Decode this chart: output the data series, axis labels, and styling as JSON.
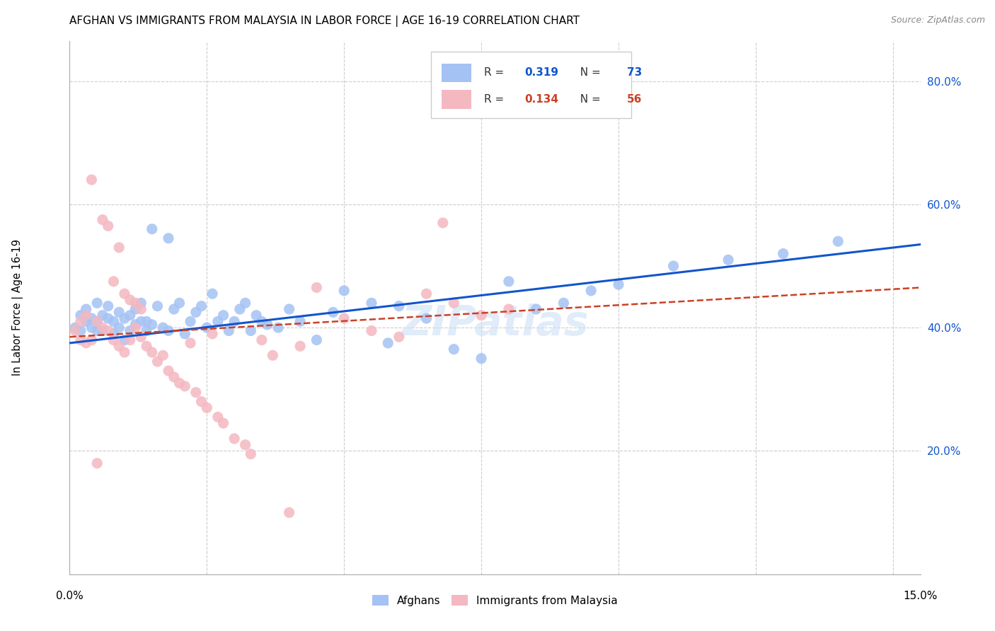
{
  "title": "AFGHAN VS IMMIGRANTS FROM MALAYSIA IN LABOR FORCE | AGE 16-19 CORRELATION CHART",
  "source": "Source: ZipAtlas.com",
  "ylabel": "In Labor Force | Age 16-19",
  "xlim": [
    0.0,
    0.155
  ],
  "ylim": [
    0.0,
    0.865
  ],
  "blue_color": "#a4c2f4",
  "pink_color": "#f4b8c1",
  "blue_line_color": "#1155cc",
  "pink_line_color": "#cc4125",
  "legend_blue_R": "0.319",
  "legend_blue_N": "73",
  "legend_pink_R": "0.134",
  "legend_pink_N": "56",
  "watermark": "ZIPatlas",
  "blue_scatter_x": [
    0.001,
    0.002,
    0.002,
    0.003,
    0.003,
    0.004,
    0.004,
    0.005,
    0.005,
    0.005,
    0.006,
    0.006,
    0.007,
    0.007,
    0.008,
    0.008,
    0.009,
    0.009,
    0.01,
    0.01,
    0.011,
    0.011,
    0.012,
    0.012,
    0.013,
    0.013,
    0.014,
    0.014,
    0.015,
    0.015,
    0.016,
    0.017,
    0.018,
    0.018,
    0.019,
    0.02,
    0.021,
    0.022,
    0.023,
    0.024,
    0.025,
    0.026,
    0.027,
    0.028,
    0.029,
    0.03,
    0.031,
    0.032,
    0.033,
    0.034,
    0.035,
    0.036,
    0.038,
    0.04,
    0.042,
    0.045,
    0.048,
    0.05,
    0.055,
    0.058,
    0.06,
    0.065,
    0.07,
    0.075,
    0.08,
    0.085,
    0.09,
    0.095,
    0.1,
    0.11,
    0.12,
    0.13,
    0.14
  ],
  "blue_scatter_y": [
    0.4,
    0.395,
    0.42,
    0.41,
    0.43,
    0.4,
    0.415,
    0.395,
    0.41,
    0.44,
    0.395,
    0.42,
    0.415,
    0.435,
    0.39,
    0.41,
    0.4,
    0.425,
    0.38,
    0.415,
    0.395,
    0.42,
    0.405,
    0.43,
    0.41,
    0.44,
    0.395,
    0.41,
    0.405,
    0.56,
    0.435,
    0.4,
    0.395,
    0.545,
    0.43,
    0.44,
    0.39,
    0.41,
    0.425,
    0.435,
    0.4,
    0.455,
    0.41,
    0.42,
    0.395,
    0.41,
    0.43,
    0.44,
    0.395,
    0.42,
    0.41,
    0.405,
    0.4,
    0.43,
    0.41,
    0.38,
    0.425,
    0.46,
    0.44,
    0.375,
    0.435,
    0.415,
    0.365,
    0.35,
    0.475,
    0.43,
    0.44,
    0.46,
    0.47,
    0.5,
    0.51,
    0.52,
    0.54
  ],
  "pink_scatter_x": [
    0.001,
    0.002,
    0.002,
    0.003,
    0.003,
    0.004,
    0.004,
    0.005,
    0.005,
    0.006,
    0.006,
    0.007,
    0.007,
    0.008,
    0.008,
    0.009,
    0.009,
    0.01,
    0.01,
    0.011,
    0.011,
    0.012,
    0.012,
    0.013,
    0.013,
    0.014,
    0.015,
    0.016,
    0.017,
    0.018,
    0.019,
    0.02,
    0.021,
    0.022,
    0.023,
    0.024,
    0.025,
    0.026,
    0.027,
    0.028,
    0.03,
    0.032,
    0.033,
    0.035,
    0.037,
    0.04,
    0.042,
    0.045,
    0.05,
    0.055,
    0.06,
    0.065,
    0.068,
    0.07,
    0.075,
    0.08
  ],
  "pink_scatter_y": [
    0.395,
    0.38,
    0.41,
    0.42,
    0.375,
    0.38,
    0.64,
    0.41,
    0.18,
    0.4,
    0.575,
    0.395,
    0.565,
    0.38,
    0.475,
    0.37,
    0.53,
    0.36,
    0.455,
    0.38,
    0.445,
    0.4,
    0.44,
    0.385,
    0.43,
    0.37,
    0.36,
    0.345,
    0.355,
    0.33,
    0.32,
    0.31,
    0.305,
    0.375,
    0.295,
    0.28,
    0.27,
    0.39,
    0.255,
    0.245,
    0.22,
    0.21,
    0.195,
    0.38,
    0.355,
    0.1,
    0.37,
    0.465,
    0.415,
    0.395,
    0.385,
    0.455,
    0.57,
    0.44,
    0.42,
    0.43
  ],
  "blue_line": [
    0.0,
    0.155,
    0.375,
    0.535
  ],
  "pink_line": [
    0.0,
    0.155,
    0.385,
    0.465
  ],
  "y_ticks": [
    0.2,
    0.4,
    0.6,
    0.8
  ],
  "y_tick_labels": [
    "20.0%",
    "40.0%",
    "60.0%",
    "80.0%"
  ],
  "x_grid_ticks": [
    0.0,
    0.025,
    0.05,
    0.075,
    0.1,
    0.125,
    0.15
  ]
}
